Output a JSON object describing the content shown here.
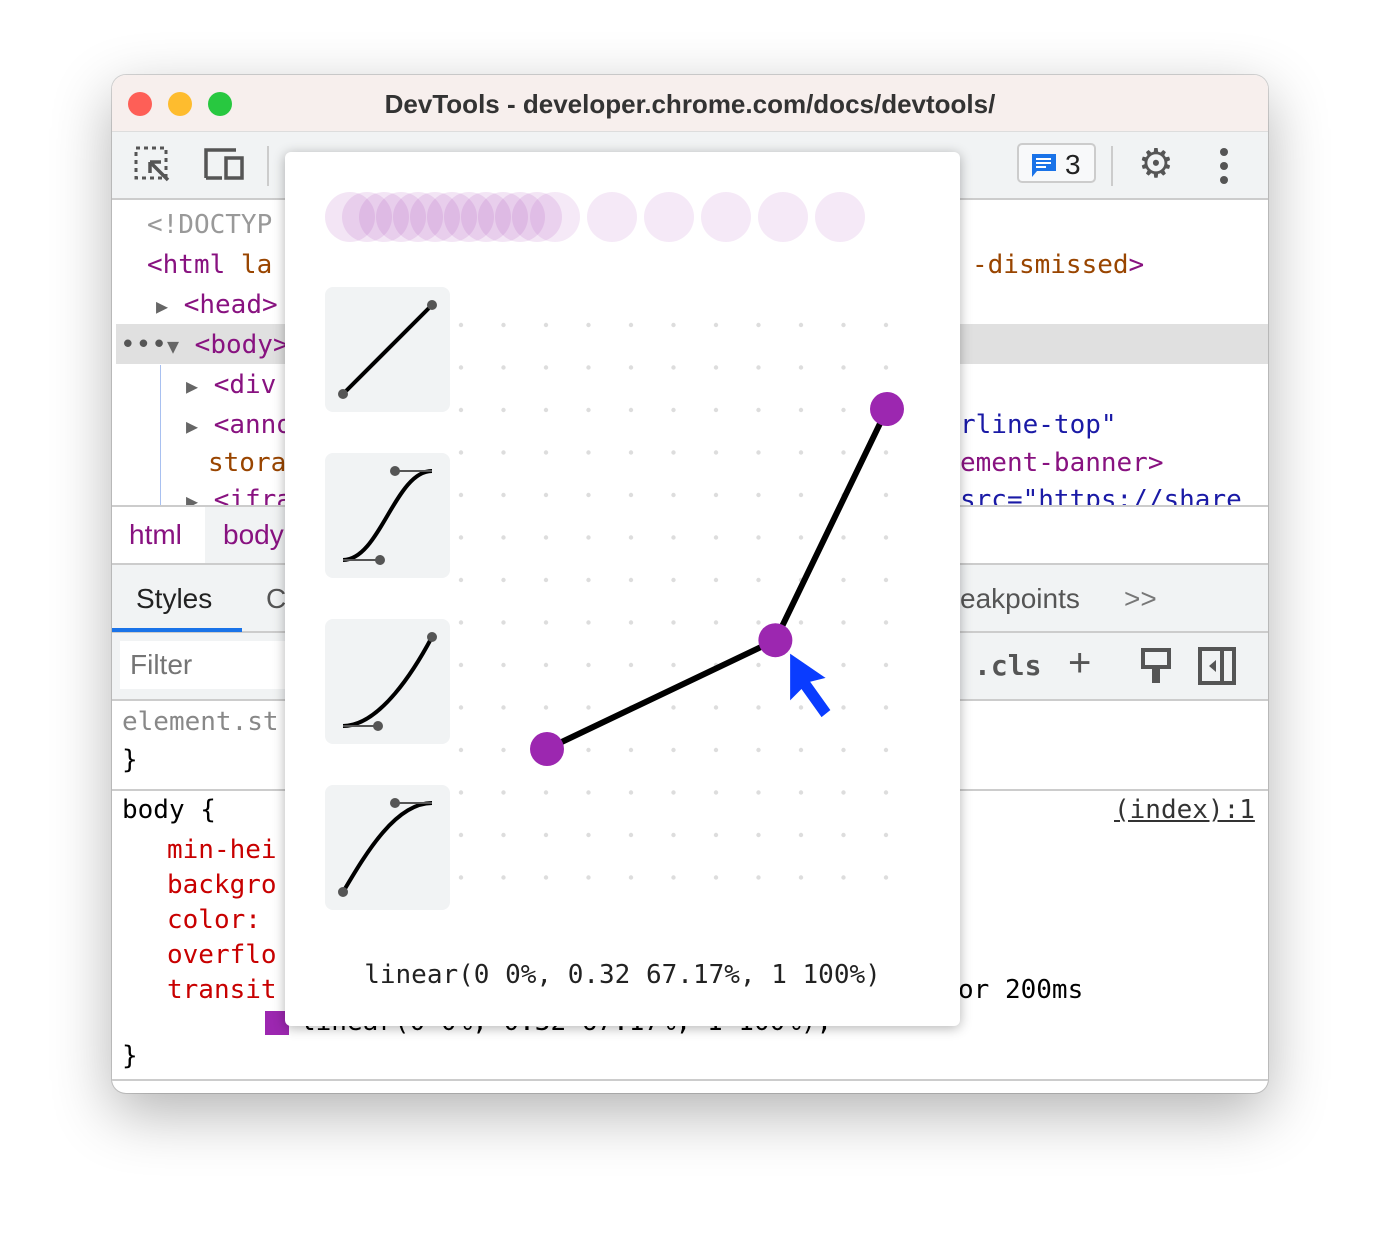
{
  "window": {
    "title": "DevTools - developer.chrome.com/docs/devtools/"
  },
  "toolbar": {
    "issues_count": "3",
    "icons": [
      "inspect-element-icon",
      "device-toggle-icon",
      "issues-icon",
      "settings-gear-icon",
      "more-vert-icon"
    ]
  },
  "elements": {
    "doctype": "<!DOCTYP",
    "html_open": "<html",
    "html_attr": " la",
    "html_tail": "-dismissed",
    "html_tail_close": ">",
    "head": "<head>",
    "body": "<body>",
    "div": "<div",
    "anno": "<anno",
    "anno_attr_value": "rline-top\"",
    "anno_attr": "stora",
    "anno_tail": "ement-banner>",
    "iframe": "<ifra",
    "iframe_src": "src=\"https://share"
  },
  "breadcrumbs": [
    "html",
    "body"
  ],
  "tabs": {
    "styles": "Styles",
    "computed_partial": "C",
    "breakpoints_partial": "eakpoints",
    "more": ">>"
  },
  "filter": {
    "placeholder": "Filter",
    "cls": ".cls"
  },
  "styles": {
    "element_style": "element.st",
    "close_brace": "}",
    "body_selector": "body {",
    "source": "(index):1",
    "props": [
      "min-hei",
      "backgro",
      "color:",
      "overflo",
      "transit"
    ],
    "transition_tail": "or 200ms",
    "transition_value": "linear(0 0%, 0.32 67.17%, 1 100%);",
    "end_brace": "}"
  },
  "easing_editor": {
    "value_text": "linear(0 0%, 0.32 67.17%, 1 100%)",
    "points": [
      {
        "input_pct": 0,
        "output": 0
      },
      {
        "input_pct": 67.17,
        "output": 0.32
      },
      {
        "input_pct": 100,
        "output": 1
      }
    ],
    "presets": [
      "linear",
      "ease-in-out",
      "ease-in",
      "ease-out"
    ],
    "accent_color": "#9c27b0",
    "cursor_color": "#0a3cff"
  }
}
